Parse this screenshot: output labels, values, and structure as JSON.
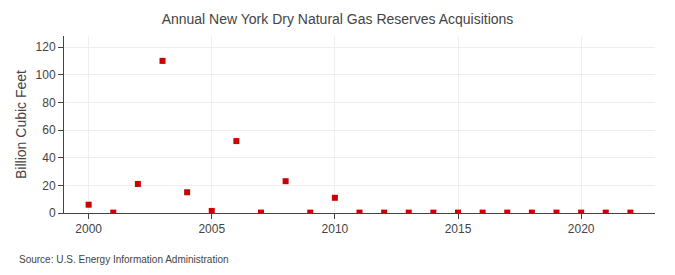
{
  "chart_data": {
    "type": "scatter",
    "title": "Annual New York Dry Natural Gas Reserves Acquisitions",
    "y_label": "Billion Cubic Feet",
    "annotations": [
      "Source: U.S. Energy Information Administration"
    ],
    "x": [
      2000,
      2001,
      2002,
      2003,
      2004,
      2005,
      2006,
      2007,
      2008,
      2009,
      2010,
      2011,
      2012,
      2013,
      2014,
      2015,
      2016,
      2017,
      2018,
      2019,
      2020,
      2021,
      2022
    ],
    "values": [
      6.0,
      0.3,
      21.0,
      110.0,
      15.0,
      1.5,
      52.0,
      0.3,
      23.0,
      0.3,
      11.0,
      0.3,
      0.3,
      0.3,
      0.3,
      0.3,
      0.3,
      0.3,
      0.3,
      0.3,
      0.3,
      0.3,
      0.3
    ],
    "color": "#cc0000",
    "marker": "square",
    "xlim": [
      1999,
      2023
    ],
    "xticks": [
      2000,
      2005,
      2010,
      2015,
      2020
    ],
    "ylim": [
      0,
      128
    ],
    "yticks": [
      0,
      20,
      40,
      60,
      80,
      100,
      120
    ],
    "grid": true
  }
}
